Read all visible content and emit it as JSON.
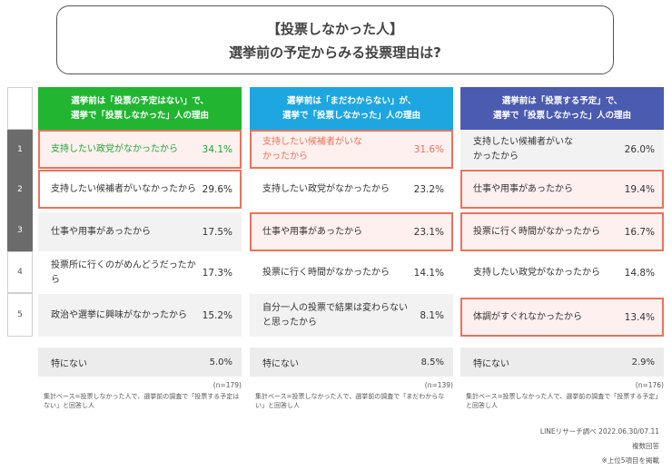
{
  "title": {
    "line1": "【投票しなかった人】",
    "line2": "選挙前の予定からみる投票理由は?"
  },
  "ranks": [
    "1",
    "2",
    "3",
    "4",
    "5"
  ],
  "colors": {
    "green": "#21b532",
    "blue": "#1ea6e0",
    "navy": "#4a5bb0",
    "highlight": "#e8735c"
  },
  "chart_data": {
    "type": "table",
    "title": "【投票しなかった人】選挙前の予定からみる投票理由は?",
    "unit": "%",
    "groups": [
      {
        "header_line1": "選挙前は「投票の予定はない」で、",
        "header_line2": "選挙で「投票しなかった」人の理由",
        "rows": [
          {
            "label": "支持したい政党がなかったから",
            "value": 34.1,
            "display": "34.1%"
          },
          {
            "label": "支持したい候補者がいなかったから",
            "value": 29.6,
            "display": "29.6%"
          },
          {
            "label": "仕事や用事があったから",
            "value": 17.5,
            "display": "17.5%"
          },
          {
            "label": "投票所に行くのがめんどうだったから",
            "value": 17.3,
            "display": "17.3%"
          },
          {
            "label": "政治や選挙に興味がなかったから",
            "value": 15.2,
            "display": "15.2%"
          }
        ],
        "none": {
          "label": "特にない",
          "value": 5.0,
          "display": "5.0%"
        },
        "n": "(n=179)",
        "note": "集計ベース=投票しなかった人で、選挙前の調査で「投票する予定はない」と回答し人"
      },
      {
        "header_line1": "選挙前は「まだわからない」が、",
        "header_line2": "選挙で「投票しなかった」人の理由",
        "rows": [
          {
            "label": "支持したい候補者がいなかったから",
            "value": 31.6,
            "display": "31.6%"
          },
          {
            "label": "支持したい政党がなかったから",
            "value": 23.2,
            "display": "23.2%"
          },
          {
            "label": "仕事や用事があったから",
            "value": 23.1,
            "display": "23.1%"
          },
          {
            "label": "投票に行く時間がなかったから",
            "value": 14.1,
            "display": "14.1%"
          },
          {
            "label": "自分一人の投票で結果は変わらないと思ったから",
            "value": 8.1,
            "display": "8.1%"
          }
        ],
        "none": {
          "label": "特にない",
          "value": 8.5,
          "display": "8.5%"
        },
        "n": "(n=139)",
        "note": "集計ベース=投票しなかった人で、選挙前の調査で「まだわからない」と回答し人"
      },
      {
        "header_line1": "選挙前は「投票する予定」で、",
        "header_line2": "選挙で「投票しなかった」人の理由",
        "rows": [
          {
            "label": "支持したい候補者がいなかったから",
            "value": 26.0,
            "display": "26.0%"
          },
          {
            "label": "仕事や用事があったから",
            "value": 19.4,
            "display": "19.4%"
          },
          {
            "label": "投票に行く時間がなかったから",
            "value": 16.7,
            "display": "16.7%"
          },
          {
            "label": "支持したい政党がなかったから",
            "value": 14.8,
            "display": "14.8%"
          },
          {
            "label": "体調がすぐれなかったから",
            "value": 13.4,
            "display": "13.4%"
          }
        ],
        "none": {
          "label": "特にない",
          "value": 2.9,
          "display": "2.9%"
        },
        "n": "(n=176)",
        "note": "集計ベース=投票しなかった人で、選挙前の調査で「投票する予定」と回答し人"
      }
    ]
  },
  "footer": {
    "source": "LINEリサーチ調べ 2022.06.30/07.11",
    "multi": "複数回答",
    "top5": "※上位5項目を掲載"
  }
}
